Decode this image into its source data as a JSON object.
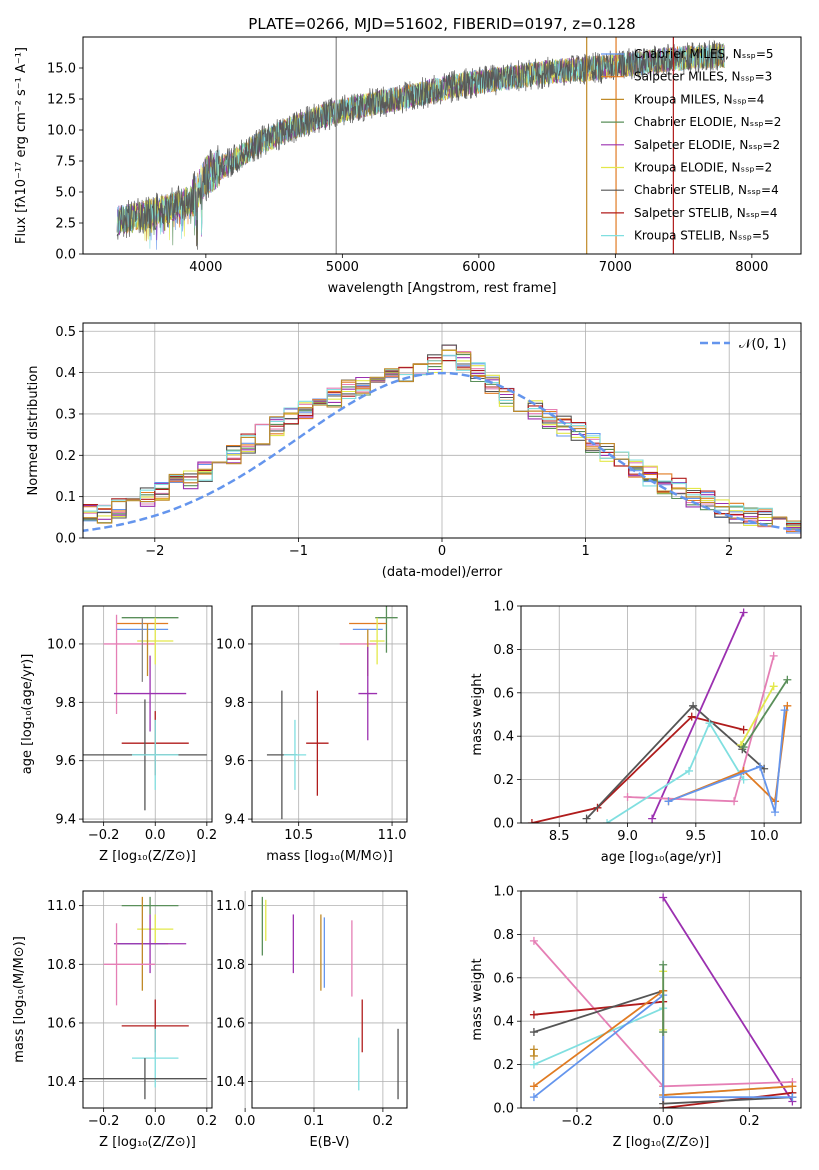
{
  "colors": {
    "cm": "#6495ed",
    "sm": "#e07b22",
    "km": "#c08a28",
    "ce": "#5a8f5a",
    "se": "#9b30b0",
    "ke": "#e3e84a",
    "cs": "#555555",
    "ss": "#b01c1c",
    "ks": "#80dfe0",
    "pink": "#e57fb5",
    "gray": "#888888"
  },
  "chart_data": [
    {
      "type": "line",
      "title": "PLATE=0266, MJD=51602, FIBERID=0197, z=0.128",
      "xlabel": "wavelength [Angstrom, rest frame]",
      "ylabel": "Flux [fλ10⁻¹⁷ erg cm⁻² s⁻¹ A⁻¹]",
      "xlim": [
        3100,
        8360
      ],
      "ylim": [
        0,
        17.5
      ],
      "xticks": [
        "4000",
        "5000",
        "6000",
        "7000",
        "8000"
      ],
      "yticks": [
        "0.0",
        "2.5",
        "5.0",
        "7.5",
        "10.0",
        "12.5",
        "15.0"
      ],
      "legend_placement": "upper right",
      "legend": [
        {
          "label": "Chabrier MILES, Nₛₛₚ=5",
          "color": "cm"
        },
        {
          "label": "Salpeter MILES, Nₛₛₚ=3",
          "color": "sm"
        },
        {
          "label": "Kroupa MILES, Nₛₛₚ=4",
          "color": "km"
        },
        {
          "label": "Chabrier ELODIE, Nₛₛₚ=2",
          "color": "ce"
        },
        {
          "label": "Salpeter ELODIE, Nₛₛₚ=2",
          "color": "se"
        },
        {
          "label": "Kroupa ELODIE, Nₛₛₚ=2",
          "color": "ke"
        },
        {
          "label": "Chabrier STELIB, Nₛₛₚ=4",
          "color": "cs"
        },
        {
          "label": "Salpeter STELIB, Nₛₛₚ=4",
          "color": "ss"
        },
        {
          "label": "Kroupa STELIB, Nₛₛₚ=5",
          "color": "ks"
        }
      ],
      "spectrum": {
        "x": [
          3350,
          3500,
          3700,
          3900,
          4000,
          4200,
          4400,
          4600,
          4800,
          5000,
          5200,
          5400,
          5600,
          5800,
          6000,
          6200,
          6400,
          6600,
          6800,
          7000,
          7200,
          7400,
          7600,
          7800
        ],
        "y": [
          2.7,
          3.0,
          3.6,
          4.4,
          6.3,
          7.5,
          9.0,
          10.0,
          10.9,
          11.6,
          12.1,
          12.5,
          13.0,
          13.5,
          13.9,
          14.2,
          14.5,
          14.8,
          14.9,
          15.2,
          15.4,
          15.7,
          15.9,
          16.0
        ]
      },
      "vertical_lines": [
        {
          "x": 4955,
          "color": "gray"
        },
        {
          "x": 6790,
          "color": "km"
        },
        {
          "x": 7005,
          "color": "sm"
        },
        {
          "x": 7425,
          "color": "ss"
        }
      ]
    },
    {
      "type": "bar",
      "title": "",
      "xlabel": "(data-model)/error",
      "ylabel": "Normed distribution",
      "xlim": [
        -2.5,
        2.5
      ],
      "ylim": [
        0,
        0.52
      ],
      "xticks": [
        "−2",
        "−1",
        "0",
        "1",
        "2"
      ],
      "yticks": [
        "0.0",
        "0.1",
        "0.2",
        "0.3",
        "0.4",
        "0.5"
      ],
      "bin_width": 0.1,
      "legend": [
        {
          "label": "𝒩(0, 1)",
          "style": "dashed",
          "color": "cm"
        }
      ],
      "legend_placement": "upper right",
      "histogram_base": [
        0.02,
        0.02,
        0.03,
        0.04,
        0.05,
        0.06,
        0.06,
        0.07,
        0.08,
        0.1,
        0.11,
        0.13,
        0.14,
        0.16,
        0.18,
        0.2,
        0.23,
        0.25,
        0.27,
        0.29,
        0.31,
        0.33,
        0.34,
        0.36,
        0.37,
        0.38,
        0.39,
        0.4,
        0.41,
        0.42,
        0.45,
        0.43,
        0.4,
        0.37,
        0.34,
        0.33,
        0.31,
        0.29,
        0.27,
        0.26,
        0.23,
        0.21,
        0.19,
        0.17,
        0.15,
        0.13,
        0.12,
        0.1,
        0.09,
        0.07,
        0.06,
        0.05,
        0.05,
        0.04,
        0.03,
        0.02,
        0.02,
        0.02,
        0.02,
        0.02
      ]
    },
    {
      "type": "scatter",
      "xlabel": "Z [log₁₀(Z/Z⊙)]",
      "ylabel": "age  [log₁₀(age/yr)]",
      "xlim": [
        -0.28,
        0.22
      ],
      "ylim": [
        9.39,
        10.13
      ],
      "xticks": [
        "−0.2",
        "0.0",
        "0.2"
      ],
      "yticks": [
        "9.4",
        "9.6",
        "9.8",
        "10.0"
      ],
      "crosses": [
        {
          "x": -0.02,
          "xerr": 0.11,
          "y": 10.09,
          "yerr": 0.0,
          "color": "ce"
        },
        {
          "x": -0.05,
          "xerr": 0.1,
          "y": 10.07,
          "yerr": 0.0,
          "color": "sm"
        },
        {
          "x": -0.05,
          "xerr": 0.1,
          "y": 10.05,
          "yerr": 0.0,
          "color": "cm"
        },
        {
          "x": -0.1,
          "xerr": 0.1,
          "y": 10.0,
          "yerr": 0.0,
          "color": "pink"
        },
        {
          "x": 0.0,
          "xerr": 0.07,
          "y": 10.01,
          "yerr": 0.08,
          "color": "ke"
        },
        {
          "x": -0.05,
          "xerr": 0.0,
          "y": 9.98,
          "yerr": 0.11,
          "color": "gray"
        },
        {
          "x": -0.03,
          "xerr": 0.0,
          "y": 9.98,
          "yerr": 0.09,
          "color": "km"
        },
        {
          "x": -0.15,
          "xerr": 0.0,
          "y": 9.93,
          "yerr": 0.17,
          "color": "pink"
        },
        {
          "x": -0.02,
          "xerr": 0.14,
          "y": 9.83,
          "yerr": 0.13,
          "color": "se"
        },
        {
          "x": 0.0,
          "xerr": 0.13,
          "y": 9.66,
          "yerr": 0.11,
          "color": "ss"
        },
        {
          "x": -0.04,
          "xerr": 0.24,
          "y": 9.62,
          "yerr": 0.19,
          "color": "cs"
        },
        {
          "x": 0.0,
          "xerr": 0.09,
          "y": 9.62,
          "yerr": 0.12,
          "color": "ks"
        }
      ]
    },
    {
      "type": "scatter",
      "xlabel": "mass [log₁₀(M/M⊙)]",
      "ylabel": "",
      "xlim": [
        10.25,
        11.08
      ],
      "ylim": [
        9.39,
        10.13
      ],
      "xticks": [
        "10.5",
        "11.0"
      ],
      "yticks": [
        "9.4",
        "9.6",
        "9.8",
        "10.0"
      ],
      "crosses": [
        {
          "x": 10.97,
          "xerr": 0.06,
          "y": 10.09,
          "yerr": 0.12,
          "color": "ce"
        },
        {
          "x": 10.87,
          "xerr": 0.1,
          "y": 10.07,
          "yerr": 0.0,
          "color": "sm"
        },
        {
          "x": 10.87,
          "xerr": 0.08,
          "y": 10.05,
          "yerr": 0.0,
          "color": "cm"
        },
        {
          "x": 10.82,
          "xerr": 0.1,
          "y": 10.0,
          "yerr": 0.0,
          "color": "pink"
        },
        {
          "x": 10.92,
          "xerr": 0.04,
          "y": 10.01,
          "yerr": 0.08,
          "color": "ke"
        },
        {
          "x": 10.87,
          "xerr": 0.0,
          "y": 9.97,
          "yerr": 0.08,
          "color": "km"
        },
        {
          "x": 10.87,
          "xerr": 0.05,
          "y": 9.83,
          "yerr": 0.16,
          "color": "se"
        },
        {
          "x": 10.6,
          "xerr": 0.06,
          "y": 9.66,
          "yerr": 0.18,
          "color": "ss"
        },
        {
          "x": 10.41,
          "xerr": 0.08,
          "y": 9.62,
          "yerr": 0.22,
          "color": "cs"
        },
        {
          "x": 10.48,
          "xerr": 0.06,
          "y": 9.62,
          "yerr": 0.12,
          "color": "ks"
        }
      ]
    },
    {
      "type": "line",
      "xlabel": "age  [log₁₀(age/yr)]",
      "ylabel": "mass weight",
      "xlim": [
        8.22,
        10.27
      ],
      "ylim": [
        0,
        1.0
      ],
      "xticks": [
        "8.5",
        "9.0",
        "9.5",
        "10.0"
      ],
      "yticks": [
        "0.0",
        "0.2",
        "0.4",
        "0.6",
        "0.8",
        "1.0"
      ],
      "series": [
        {
          "color": "ss",
          "x": [
            8.3,
            8.78,
            9.47,
            9.85
          ],
          "y": [
            0.0,
            0.07,
            0.49,
            0.43
          ]
        },
        {
          "color": "cs",
          "x": [
            8.7,
            9.48,
            9.84,
            10.0
          ],
          "y": [
            0.02,
            0.54,
            0.34,
            0.25
          ]
        },
        {
          "color": "se",
          "x": [
            9.18,
            9.85
          ],
          "y": [
            0.02,
            0.97
          ]
        },
        {
          "color": "pink",
          "x": [
            9.0,
            9.78,
            10.07
          ],
          "y": [
            0.12,
            0.1,
            0.77
          ]
        },
        {
          "color": "ke",
          "x": [
            9.83,
            10.07
          ],
          "y": [
            0.36,
            0.63
          ]
        },
        {
          "color": "ce",
          "x": [
            9.85,
            10.17
          ],
          "y": [
            0.35,
            0.66
          ]
        },
        {
          "color": "ks",
          "x": [
            8.85,
            9.45,
            9.6,
            9.85
          ],
          "y": [
            0.0,
            0.24,
            0.46,
            0.2
          ]
        },
        {
          "color": "sm",
          "x": [
            9.3,
            9.85,
            10.08,
            10.17
          ],
          "y": [
            0.1,
            0.24,
            0.1,
            0.54
          ]
        },
        {
          "color": "cm",
          "x": [
            9.3,
            9.97,
            10.08,
            10.15
          ],
          "y": [
            0.1,
            0.26,
            0.05,
            0.52
          ]
        }
      ]
    },
    {
      "type": "scatter",
      "xlabel": "Z [log₁₀(Z/Z⊙)]",
      "ylabel": "mass [log₁₀(M/M⊙)]",
      "xlim": [
        -0.28,
        0.22
      ],
      "ylim": [
        10.31,
        11.05
      ],
      "xticks": [
        "−0.2",
        "0.0",
        "0.2"
      ],
      "yticks": [
        "10.4",
        "10.6",
        "10.8",
        "11.0"
      ],
      "crosses": [
        {
          "x": -0.02,
          "xerr": 0.11,
          "y": 11.0,
          "yerr": 0.03,
          "color": "ce"
        },
        {
          "x": 0.0,
          "xerr": 0.07,
          "y": 10.92,
          "yerr": 0.05,
          "color": "ke"
        },
        {
          "x": -0.05,
          "xerr": 0.1,
          "y": 10.87,
          "yerr": 0.0,
          "color": "sm"
        },
        {
          "x": -0.05,
          "xerr": 0.09,
          "y": 10.87,
          "yerr": 0.0,
          "color": "cm"
        },
        {
          "x": -0.02,
          "xerr": 0.14,
          "y": 10.87,
          "yerr": 0.1,
          "color": "se"
        },
        {
          "x": -0.05,
          "xerr": 0.0,
          "y": 10.87,
          "yerr": 0.16,
          "color": "km"
        },
        {
          "x": -0.1,
          "xerr": 0.1,
          "y": 10.8,
          "yerr": 0.0,
          "color": "pink"
        },
        {
          "x": -0.15,
          "xerr": 0.0,
          "y": 10.8,
          "yerr": 0.14,
          "color": "pink"
        },
        {
          "x": 0.0,
          "xerr": 0.13,
          "y": 10.59,
          "yerr": 0.09,
          "color": "ss"
        },
        {
          "x": 0.0,
          "xerr": 0.09,
          "y": 10.48,
          "yerr": 0.1,
          "color": "ks"
        },
        {
          "x": -0.04,
          "xerr": 0.24,
          "y": 10.41,
          "yerr": 0.07,
          "color": "cs"
        }
      ]
    },
    {
      "type": "scatter",
      "xlabel": "E(B-V)",
      "ylabel": "",
      "xlim": [
        0.01,
        0.235
      ],
      "ylim": [
        10.31,
        11.05
      ],
      "xticks": [
        "0.0",
        "0.1",
        "0.2"
      ],
      "yticks": [
        "10.4",
        "10.6",
        "10.8",
        "11.0"
      ],
      "crosses": [
        {
          "x": 0.025,
          "xerr": 0.0,
          "y": 10.93,
          "yerr": 0.1,
          "color": "ce"
        },
        {
          "x": 0.03,
          "xerr": 0.0,
          "y": 10.95,
          "yerr": 0.07,
          "color": "ke"
        },
        {
          "x": 0.07,
          "xerr": 0.0,
          "y": 10.87,
          "yerr": 0.1,
          "color": "se"
        },
        {
          "x": 0.11,
          "xerr": 0.0,
          "y": 10.84,
          "yerr": 0.13,
          "color": "km"
        },
        {
          "x": 0.115,
          "xerr": 0.0,
          "y": 10.84,
          "yerr": 0.12,
          "color": "cm"
        },
        {
          "x": 0.155,
          "xerr": 0.0,
          "y": 10.82,
          "yerr": 0.13,
          "color": "pink"
        },
        {
          "x": 0.17,
          "xerr": 0.0,
          "y": 10.59,
          "yerr": 0.09,
          "color": "ss"
        },
        {
          "x": 0.165,
          "xerr": 0.0,
          "y": 10.46,
          "yerr": 0.09,
          "color": "ks"
        },
        {
          "x": 0.222,
          "xerr": 0.0,
          "y": 10.46,
          "yerr": 0.12,
          "color": "cs"
        }
      ]
    },
    {
      "type": "line",
      "xlabel": "Z [log₁₀(Z/Z⊙)]",
      "ylabel": "mass weight",
      "xlim": [
        -0.33,
        0.32
      ],
      "ylim": [
        0,
        1.0
      ],
      "xticks": [
        "−0.2",
        "0.0",
        "0.2"
      ],
      "yticks": [
        "0.0",
        "0.2",
        "0.4",
        "0.6",
        "0.8",
        "1.0"
      ],
      "series": [
        {
          "color": "se",
          "x": [
            0.0,
            0.3
          ],
          "y": [
            0.97,
            0.03
          ]
        },
        {
          "color": "pink",
          "x": [
            -0.3,
            0.0,
            0.3
          ],
          "y": [
            0.77,
            0.1,
            0.12
          ]
        },
        {
          "color": "ss",
          "x": [
            -0.3,
            0.0,
            0.0,
            0.3
          ],
          "y": [
            0.43,
            0.49,
            0.0,
            0.07
          ]
        },
        {
          "color": "cs",
          "x": [
            -0.3,
            0.0,
            0.0,
            0.3
          ],
          "y": [
            0.35,
            0.54,
            0.02,
            0.05
          ]
        },
        {
          "color": "ks",
          "x": [
            -0.3,
            0.0,
            0.0,
            0.3
          ],
          "y": [
            0.2,
            0.46,
            0.06,
            0.1
          ]
        },
        {
          "color": "sm",
          "x": [
            -0.3,
            0.0,
            0.0,
            0.3
          ],
          "y": [
            0.1,
            0.54,
            0.06,
            0.1
          ]
        },
        {
          "color": "cm",
          "x": [
            -0.3,
            0.0,
            0.0,
            0.3
          ],
          "y": [
            0.05,
            0.52,
            0.05,
            0.05
          ]
        },
        {
          "color": "ke",
          "x": [
            0.0,
            0.0
          ],
          "y": [
            0.36,
            0.63
          ]
        },
        {
          "color": "ce",
          "x": [
            0.0,
            0.0
          ],
          "y": [
            0.35,
            0.66
          ]
        },
        {
          "color": "km",
          "x": [
            -0.3,
            -0.3
          ],
          "y": [
            0.24,
            0.27
          ]
        }
      ]
    }
  ]
}
